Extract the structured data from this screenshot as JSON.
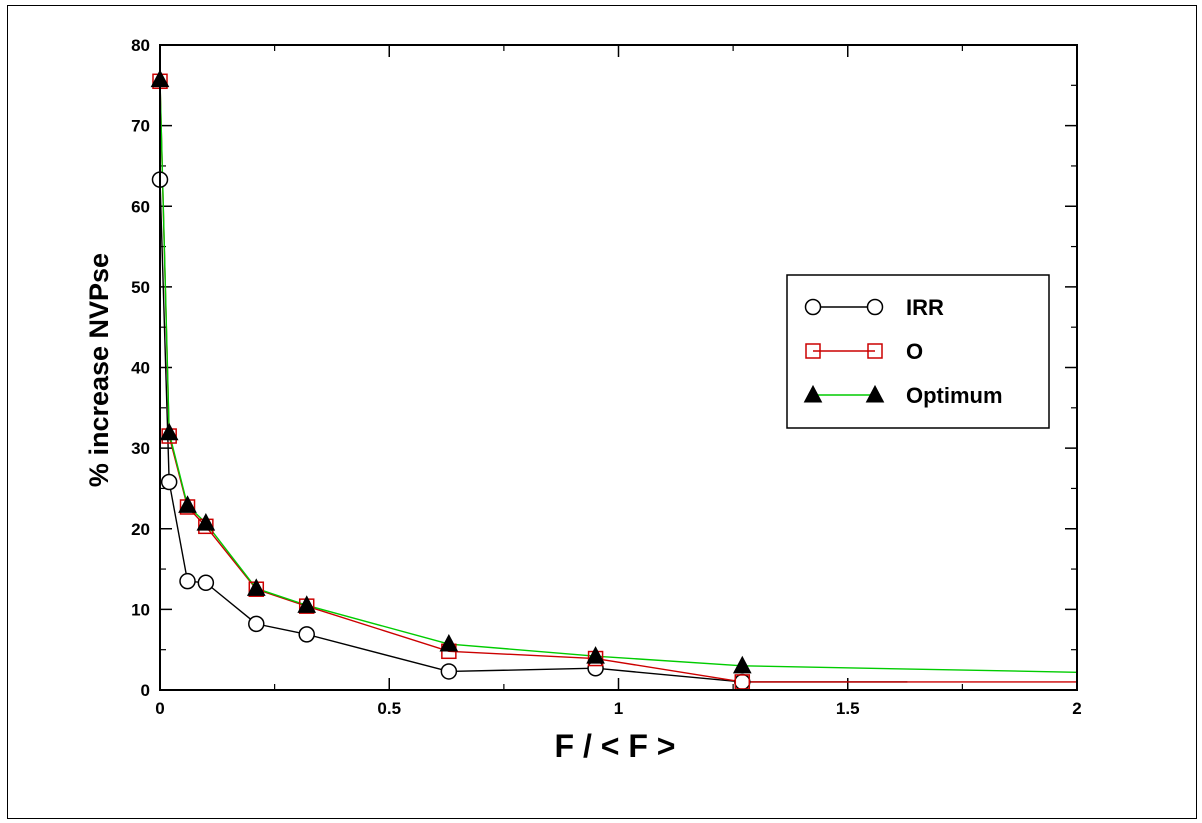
{
  "chart_data": {
    "type": "line",
    "title": "",
    "xlabel": "F / < F >",
    "ylabel": "% increase NVPse",
    "xlim": [
      0,
      2
    ],
    "ylim": [
      0,
      80
    ],
    "xticks": [
      0,
      0.5,
      1,
      1.5,
      2
    ],
    "xtick_labels": [
      "0",
      "0.5",
      "1",
      "1.5",
      "2"
    ],
    "yticks": [
      0,
      10,
      20,
      30,
      40,
      50,
      60,
      70,
      80
    ],
    "ytick_labels": [
      "0",
      "10",
      "20",
      "30",
      "40",
      "50",
      "60",
      "70",
      "80"
    ],
    "grid": false,
    "legend_position": "right",
    "series": [
      {
        "name": "IRR",
        "color": "#000000",
        "marker": "circle-open",
        "x": [
          0.0,
          0.02,
          0.06,
          0.1,
          0.21,
          0.32,
          0.63,
          0.95,
          1.27,
          1.63
        ],
        "y": [
          63.3,
          25.8,
          13.5,
          13.3,
          8.2,
          6.9,
          2.3,
          2.7,
          1.0,
          1.0
        ],
        "marked_count": 9
      },
      {
        "name": "O",
        "color": "#cc0000",
        "marker": "square-open",
        "x": [
          0.0,
          0.02,
          0.06,
          0.1,
          0.21,
          0.32,
          0.63,
          0.95,
          1.27,
          2.0
        ],
        "y": [
          75.5,
          31.5,
          22.7,
          20.3,
          12.5,
          10.4,
          4.8,
          3.9,
          1.0,
          1.0
        ],
        "marked_count": 9
      },
      {
        "name": "Optimum",
        "color": "#00cc00",
        "marker": "triangle-filled",
        "x": [
          0.0,
          0.02,
          0.06,
          0.1,
          0.21,
          0.32,
          0.63,
          0.95,
          1.27,
          2.0
        ],
        "y": [
          75.7,
          31.9,
          22.9,
          20.7,
          12.6,
          10.5,
          5.7,
          4.2,
          3.0,
          2.2
        ],
        "marked_count": 9
      }
    ]
  }
}
